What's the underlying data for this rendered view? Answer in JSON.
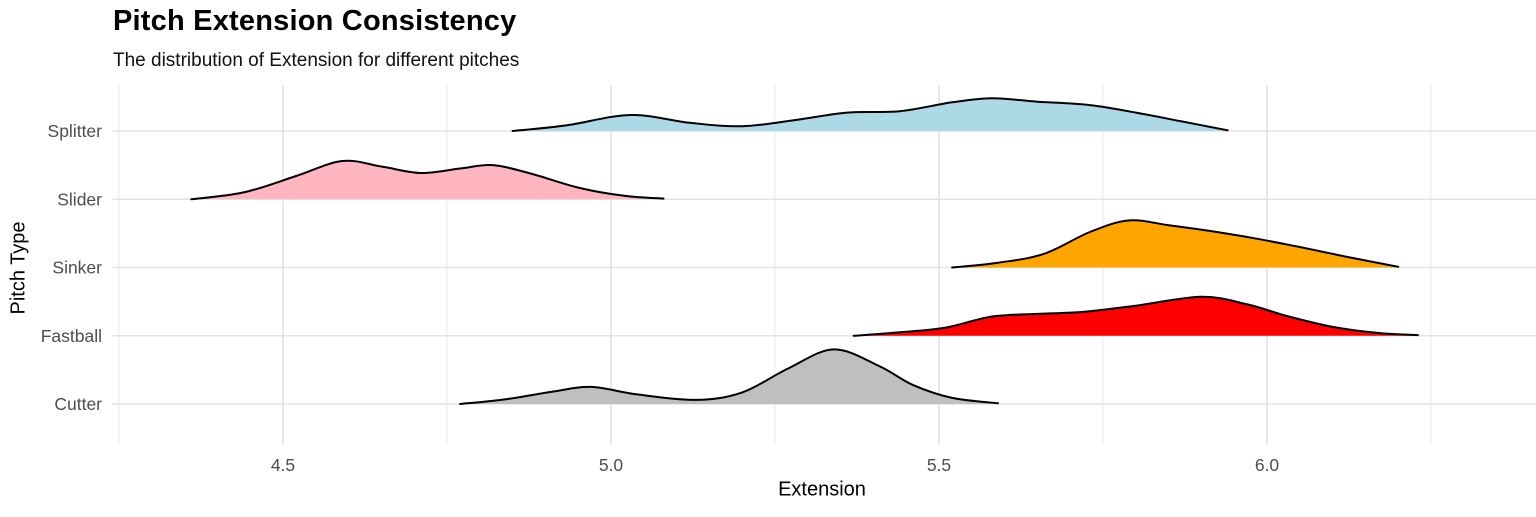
{
  "chart_data": {
    "type": "area",
    "subtype": "ridgeline-density",
    "title": "Pitch Extension Consistency",
    "subtitle": "The distribution of Extension for different pitches",
    "xlabel": "Extension",
    "ylabel": "Pitch Type",
    "x_ticks": [
      4.5,
      5.0,
      5.5,
      6.0
    ],
    "x_minor_ticks": [
      4.25,
      4.75,
      5.25,
      5.75,
      6.25
    ],
    "xlim": [
      4.23,
      6.41
    ],
    "grid": true,
    "legend": "none",
    "categories": [
      "Splitter",
      "Slider",
      "Sinker",
      "Fastball",
      "Cutter"
    ],
    "height_unit": "fraction of row spacing between category baselines",
    "series": [
      {
        "name": "Splitter",
        "color": "#ADD8E6",
        "extension_range": [
          4.85,
          5.94
        ],
        "peak_extension": 5.58,
        "density": [
          [
            4.85,
            0
          ],
          [
            4.93,
            0.08
          ],
          [
            5.03,
            0.235
          ],
          [
            5.12,
            0.12
          ],
          [
            5.2,
            0.07
          ],
          [
            5.28,
            0.16
          ],
          [
            5.36,
            0.27
          ],
          [
            5.44,
            0.29
          ],
          [
            5.52,
            0.42
          ],
          [
            5.58,
            0.48
          ],
          [
            5.65,
            0.43
          ],
          [
            5.73,
            0.38
          ],
          [
            5.8,
            0.27
          ],
          [
            5.87,
            0.14
          ],
          [
            5.94,
            0.01
          ]
        ]
      },
      {
        "name": "Slider",
        "color": "#FFB6C1",
        "extension_range": [
          4.36,
          5.08
        ],
        "peak_extension": 4.59,
        "density": [
          [
            4.36,
            0
          ],
          [
            4.44,
            0.1
          ],
          [
            4.52,
            0.34
          ],
          [
            4.59,
            0.56
          ],
          [
            4.65,
            0.48
          ],
          [
            4.71,
            0.385
          ],
          [
            4.77,
            0.45
          ],
          [
            4.82,
            0.5
          ],
          [
            4.88,
            0.37
          ],
          [
            4.95,
            0.17
          ],
          [
            5.02,
            0.05
          ],
          [
            5.08,
            0.01
          ]
        ]
      },
      {
        "name": "Sinker",
        "color": "#FFA500",
        "extension_range": [
          5.52,
          6.2
        ],
        "peak_extension": 5.79,
        "density": [
          [
            5.52,
            0
          ],
          [
            5.59,
            0.07
          ],
          [
            5.66,
            0.2
          ],
          [
            5.73,
            0.52
          ],
          [
            5.79,
            0.69
          ],
          [
            5.85,
            0.62
          ],
          [
            5.91,
            0.54
          ],
          [
            5.98,
            0.43
          ],
          [
            6.05,
            0.3
          ],
          [
            6.12,
            0.16
          ],
          [
            6.2,
            0.01
          ]
        ]
      },
      {
        "name": "Fastball",
        "color": "#FF0000",
        "extension_range": [
          5.37,
          6.23
        ],
        "peak_extension": 5.9,
        "density": [
          [
            5.37,
            0
          ],
          [
            5.44,
            0.05
          ],
          [
            5.51,
            0.12
          ],
          [
            5.58,
            0.28
          ],
          [
            5.65,
            0.32
          ],
          [
            5.72,
            0.35
          ],
          [
            5.8,
            0.44
          ],
          [
            5.9,
            0.57
          ],
          [
            5.97,
            0.46
          ],
          [
            6.03,
            0.29
          ],
          [
            6.1,
            0.13
          ],
          [
            6.17,
            0.04
          ],
          [
            6.23,
            0.01
          ]
        ]
      },
      {
        "name": "Cutter",
        "color": "#BFBFBF",
        "extension_range": [
          4.77,
          5.59
        ],
        "peak_extension": 5.34,
        "density": [
          [
            4.77,
            0
          ],
          [
            4.84,
            0.07
          ],
          [
            4.91,
            0.18
          ],
          [
            4.97,
            0.25
          ],
          [
            5.04,
            0.14
          ],
          [
            5.13,
            0.06
          ],
          [
            5.2,
            0.17
          ],
          [
            5.27,
            0.52
          ],
          [
            5.34,
            0.8
          ],
          [
            5.41,
            0.55
          ],
          [
            5.46,
            0.28
          ],
          [
            5.52,
            0.09
          ],
          [
            5.59,
            0.01
          ]
        ]
      }
    ],
    "style": {
      "outline_color": "#000000",
      "major_grid_color": "#E3E3E3",
      "minor_grid_color": "#EDEDED",
      "tick_label_color": "#4D4D4D",
      "background": "#FFFFFF"
    }
  }
}
